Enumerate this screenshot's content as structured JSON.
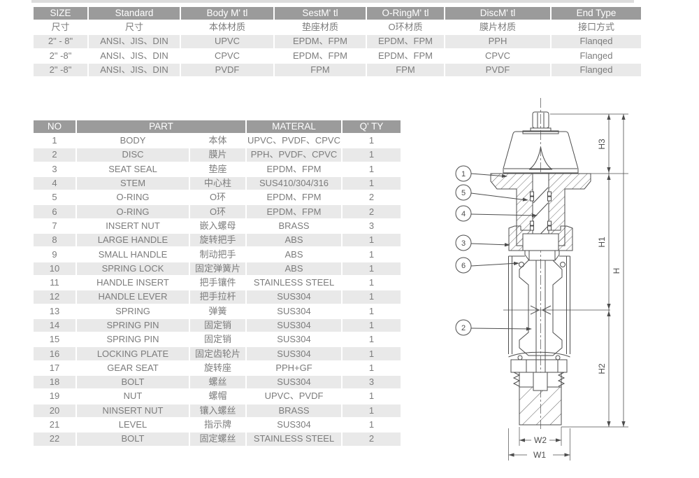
{
  "colors": {
    "header_bg": "#9b9b9b",
    "header_text": "#ffffff",
    "row_alt_bg": "#e9e9e9",
    "body_text": "#7c7c7c",
    "line": "#4d4d4d"
  },
  "spec_table": {
    "headers_en": [
      "SIZE",
      "Standard",
      "Body M' tl",
      "SestM' tl",
      "O-RingM' tl",
      "DiscM' tl",
      "End Type"
    ],
    "headers_cn": [
      "尺寸",
      "尺寸",
      "本体材质",
      "垫座材质",
      "O环材质",
      "膜片材质",
      "接口方式"
    ],
    "rows": [
      [
        "2\" - 8\"",
        "ANSI、JIS、DIN",
        "UPVC",
        "EPDM、FPM",
        "EPDM、FPM",
        "PPH",
        "Flanqed"
      ],
      [
        "2\" -8\"",
        "ANSI、JIS、DIN",
        "CPVC",
        "EPDM、FPM",
        "EPDM、FPM",
        "CPVC",
        "Flanged"
      ],
      [
        "2\" -8\"",
        "ANSI、JIS、DIN",
        "PVDF",
        "FPM",
        "FPM",
        "PVDF",
        "Flanged"
      ]
    ]
  },
  "parts_table": {
    "headers": [
      {
        "label": "NO",
        "span": 1
      },
      {
        "label": "PART",
        "span": 2
      },
      {
        "label": "MATERAL",
        "span": 1
      },
      {
        "label": "Q' TY",
        "span": 1
      }
    ],
    "rows": [
      {
        "no": "1",
        "part_en": "BODY",
        "part_cn": "本体",
        "material": "UPVC、PVDF、CPVC",
        "qty": "1"
      },
      {
        "no": "2",
        "part_en": "DISC",
        "part_cn": "膜片",
        "material": "PPH、PVDF、CPVC",
        "qty": "1"
      },
      {
        "no": "3",
        "part_en": "SEAT SEAL",
        "part_cn": "垫座",
        "material": "EPDM、FPM",
        "qty": "1"
      },
      {
        "no": "4",
        "part_en": "STEM",
        "part_cn": "中心柱",
        "material": "SUS410/304/316",
        "qty": "1"
      },
      {
        "no": "5",
        "part_en": "O-RING",
        "part_cn": "O环",
        "material": "EPDM、FPM",
        "qty": "2"
      },
      {
        "no": "6",
        "part_en": "O-RING",
        "part_cn": "O环",
        "material": "EPDM、FPM",
        "qty": "2"
      },
      {
        "no": "7",
        "part_en": "INSERT NUT",
        "part_cn": "嵌入螺母",
        "material": "BRASS",
        "qty": "3"
      },
      {
        "no": "8",
        "part_en": "LARGE HANDLE",
        "part_cn": "旋转把手",
        "material": "ABS",
        "qty": "1"
      },
      {
        "no": "9",
        "part_en": "SMALL HANDLE",
        "part_cn": "制动把手",
        "material": "ABS",
        "qty": "1"
      },
      {
        "no": "10",
        "part_en": "SPRING LOCK",
        "part_cn": "固定弹簧片",
        "material": "ABS",
        "qty": "1"
      },
      {
        "no": "11",
        "part_en": "HANDLE INSERT",
        "part_cn": "把手镶件",
        "material": "STAINLESS STEEL",
        "qty": "1"
      },
      {
        "no": "12",
        "part_en": "HANDLE LEVER",
        "part_cn": "把手拉杆",
        "material": "SUS304",
        "qty": "1"
      },
      {
        "no": "13",
        "part_en": "SPRING",
        "part_cn": "弹簧",
        "material": "SUS304",
        "qty": "1"
      },
      {
        "no": "14",
        "part_en": "SPRING PIN",
        "part_cn": "固定销",
        "material": "SUS304",
        "qty": "1"
      },
      {
        "no": "15",
        "part_en": "SPRING PIN",
        "part_cn": "固定销",
        "material": "SUS304",
        "qty": "1"
      },
      {
        "no": "16",
        "part_en": "LOCKING PLATE",
        "part_cn": "固定齿轮片",
        "material": "SUS304",
        "qty": "1"
      },
      {
        "no": "17",
        "part_en": "GEAR SEAT",
        "part_cn": "旋转座",
        "material": "PPH+GF",
        "qty": "1"
      },
      {
        "no": "18",
        "part_en": "BOLT",
        "part_cn": "螺丝",
        "material": "SUS304",
        "qty": "3"
      },
      {
        "no": "19",
        "part_en": "NUT",
        "part_cn": "螺帽",
        "material": "UPVC、PVDF",
        "qty": "1"
      },
      {
        "no": "20",
        "part_en": "NINSERT NUT",
        "part_cn": "镶入螺丝",
        "material": "BRASS",
        "qty": "1"
      },
      {
        "no": "21",
        "part_en": "LEVEL",
        "part_cn": "指示牌",
        "material": "SUS304",
        "qty": "1"
      },
      {
        "no": "22",
        "part_en": "BOLT",
        "part_cn": "固定螺丝",
        "material": "STAINLESS STEEL",
        "qty": "2"
      }
    ]
  },
  "diagram": {
    "callouts": [
      {
        "label": "1"
      },
      {
        "label": "5"
      },
      {
        "label": "4"
      },
      {
        "label": "3"
      },
      {
        "label": "6"
      },
      {
        "label": "2"
      }
    ],
    "dimensions": {
      "h3": "H3",
      "h1": "H1",
      "h": "H",
      "h2": "H2",
      "w2": "W2",
      "w1": "W1"
    }
  }
}
